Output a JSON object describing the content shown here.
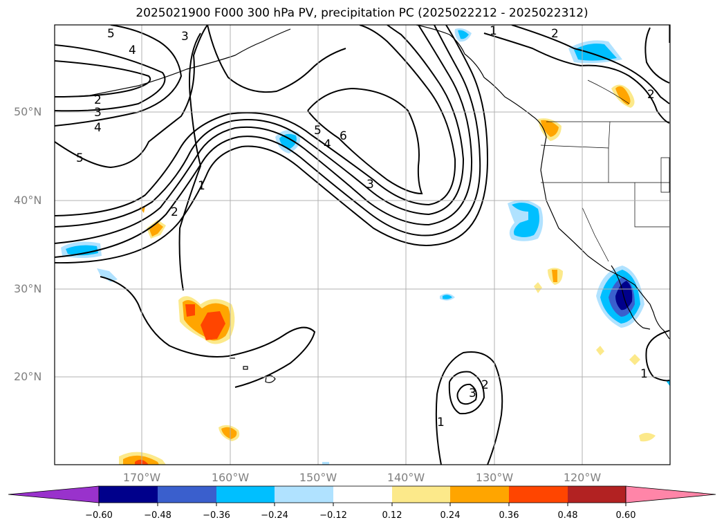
{
  "title": "2025021900 F000 300 hPa PV, precipitation PC (2025022212 - 2025022312)",
  "map": {
    "lat_labels": [
      "50°N",
      "40°N",
      "30°N",
      "20°N"
    ],
    "lon_labels": [
      "170°W",
      "160°W",
      "150°W",
      "140°W",
      "130°W",
      "120°W"
    ],
    "contour_labels": [
      "5",
      "4",
      "3",
      "2",
      "3",
      "4",
      "5",
      "1",
      "2",
      "5",
      "4",
      "6",
      "3",
      "1",
      "2",
      "2",
      "1",
      "3",
      "2",
      "1"
    ],
    "colors": {
      "land_outline": "#000000",
      "grid": "#b0b0b0",
      "contour": "#000000",
      "tick_label": "#7f7f7f"
    }
  },
  "colorbar": {
    "ticks": [
      "−0.60",
      "−0.48",
      "−0.36",
      "−0.24",
      "−0.12",
      "0.12",
      "0.24",
      "0.36",
      "0.48",
      "0.60"
    ],
    "colors": [
      "#9932cc",
      "#00008b",
      "#3a5fcd",
      "#00bfff",
      "#b0e2ff",
      "#ffffff",
      "#fce98a",
      "#ffa500",
      "#ff4500",
      "#b22222",
      "#ff85a8"
    ],
    "extend": "both"
  }
}
